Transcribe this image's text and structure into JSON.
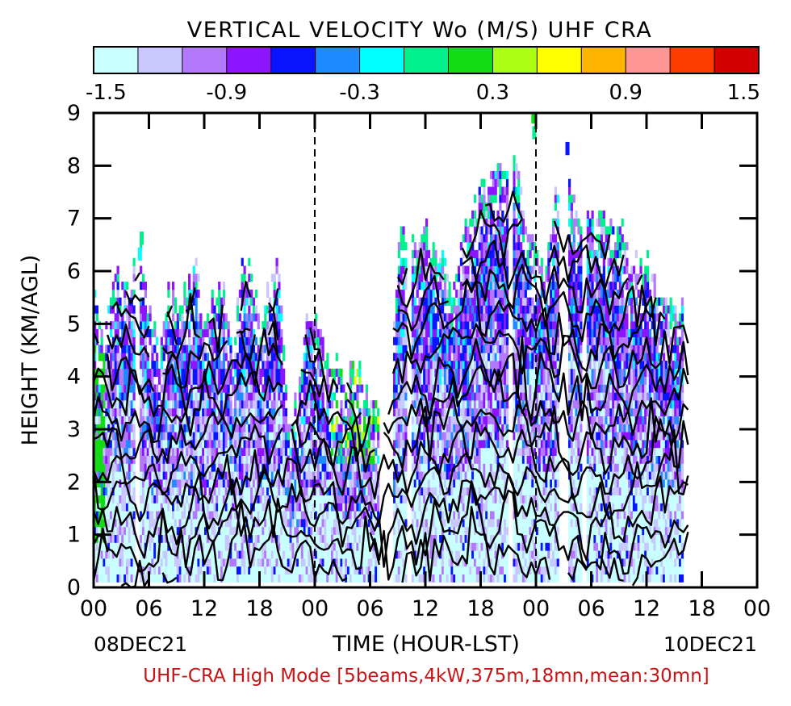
{
  "chart_data": {
    "type": "heatmap",
    "title": "VERTICAL VELOCITY Wo (M/S) UHF CRA",
    "xlabel": "TIME (HOUR-LST)",
    "ylabel": "HEIGHT (KM/AGL)",
    "footer": "UHF-CRA High Mode [5beams,4kW,375m,18mn,mean:30mn]",
    "start_date_label": "08DEC21",
    "end_date_label": "10DEC21",
    "xlim_hours": [
      0,
      72
    ],
    "ylim": [
      0,
      9
    ],
    "x_tick_labels": [
      "00",
      "06",
      "12",
      "18",
      "00",
      "06",
      "12",
      "18",
      "00",
      "06",
      "12",
      "18",
      "00"
    ],
    "y_tick_labels": [
      "0",
      "1",
      "2",
      "3",
      "4",
      "5",
      "6",
      "7",
      "8",
      "9"
    ],
    "colorbar": {
      "min": -1.5,
      "max": 1.5,
      "tick_labels": [
        "-1.5",
        "-0.9",
        "-0.3",
        "0.3",
        "0.9",
        "1.5"
      ],
      "colors": [
        "#c8ffff",
        "#c8c8ff",
        "#b478ff",
        "#8c14ff",
        "#0a14ff",
        "#1e8cff",
        "#00ffff",
        "#00f08c",
        "#14dc14",
        "#aaff14",
        "#ffff00",
        "#ffb400",
        "#ff9696",
        "#ff3c00",
        "#d20000"
      ]
    },
    "day_boundaries_hours": [
      24,
      48
    ],
    "data_coverage_hours": [
      0,
      64.5
    ],
    "cloud_top_km": [
      [
        0,
        5.3
      ],
      [
        1,
        4.5
      ],
      [
        2,
        5.9
      ],
      [
        3,
        5.6
      ],
      [
        4,
        6.0
      ],
      [
        5,
        6.6
      ],
      [
        6,
        5.2
      ],
      [
        7,
        4.3
      ],
      [
        8,
        5.8
      ],
      [
        9,
        5.2
      ],
      [
        10,
        5.7
      ],
      [
        11,
        5.9
      ],
      [
        12,
        5.0
      ],
      [
        13,
        5.4
      ],
      [
        14,
        5.6
      ],
      [
        15,
        4.5
      ],
      [
        16,
        6.2
      ],
      [
        17,
        6.1
      ],
      [
        18,
        4.9
      ],
      [
        19,
        5.9
      ],
      [
        20,
        6.0
      ],
      [
        21,
        3.2
      ],
      [
        22,
        3.5
      ],
      [
        23,
        5.2
      ],
      [
        24,
        5.1
      ],
      [
        25,
        4.3
      ],
      [
        26,
        4.3
      ],
      [
        27,
        4.0
      ],
      [
        28,
        4.1
      ],
      [
        29,
        4.0
      ],
      [
        30,
        3.7
      ],
      [
        31,
        3.0
      ],
      [
        32,
        3.6
      ],
      [
        33,
        6.7
      ],
      [
        34,
        6.6
      ],
      [
        35,
        6.6
      ],
      [
        36,
        6.8
      ],
      [
        37,
        6.3
      ],
      [
        38,
        6.0
      ],
      [
        39,
        5.5
      ],
      [
        40,
        6.7
      ],
      [
        41,
        7.1
      ],
      [
        42,
        7.4
      ],
      [
        43,
        7.9
      ],
      [
        44,
        8.0
      ],
      [
        45,
        7.7
      ],
      [
        46,
        8.1
      ],
      [
        47,
        6.5
      ],
      [
        48,
        6.3
      ],
      [
        49,
        6.0
      ],
      [
        50,
        7.4
      ],
      [
        51,
        8.3
      ],
      [
        52,
        7.3
      ],
      [
        53,
        7.1
      ],
      [
        54,
        6.9
      ],
      [
        55,
        6.9
      ],
      [
        56,
        6.9
      ],
      [
        57,
        6.8
      ],
      [
        58,
        6.3
      ],
      [
        59,
        6.1
      ],
      [
        60,
        6.1
      ],
      [
        61,
        5.7
      ],
      [
        62,
        5.5
      ],
      [
        63,
        5.3
      ],
      [
        64,
        5.2
      ]
    ],
    "contour_levels_km": [
      0.4,
      0.9,
      1.4,
      1.9,
      2.4,
      2.9,
      3.4,
      3.9,
      4.4,
      4.9,
      5.4,
      5.9,
      6.4,
      6.9
    ]
  }
}
